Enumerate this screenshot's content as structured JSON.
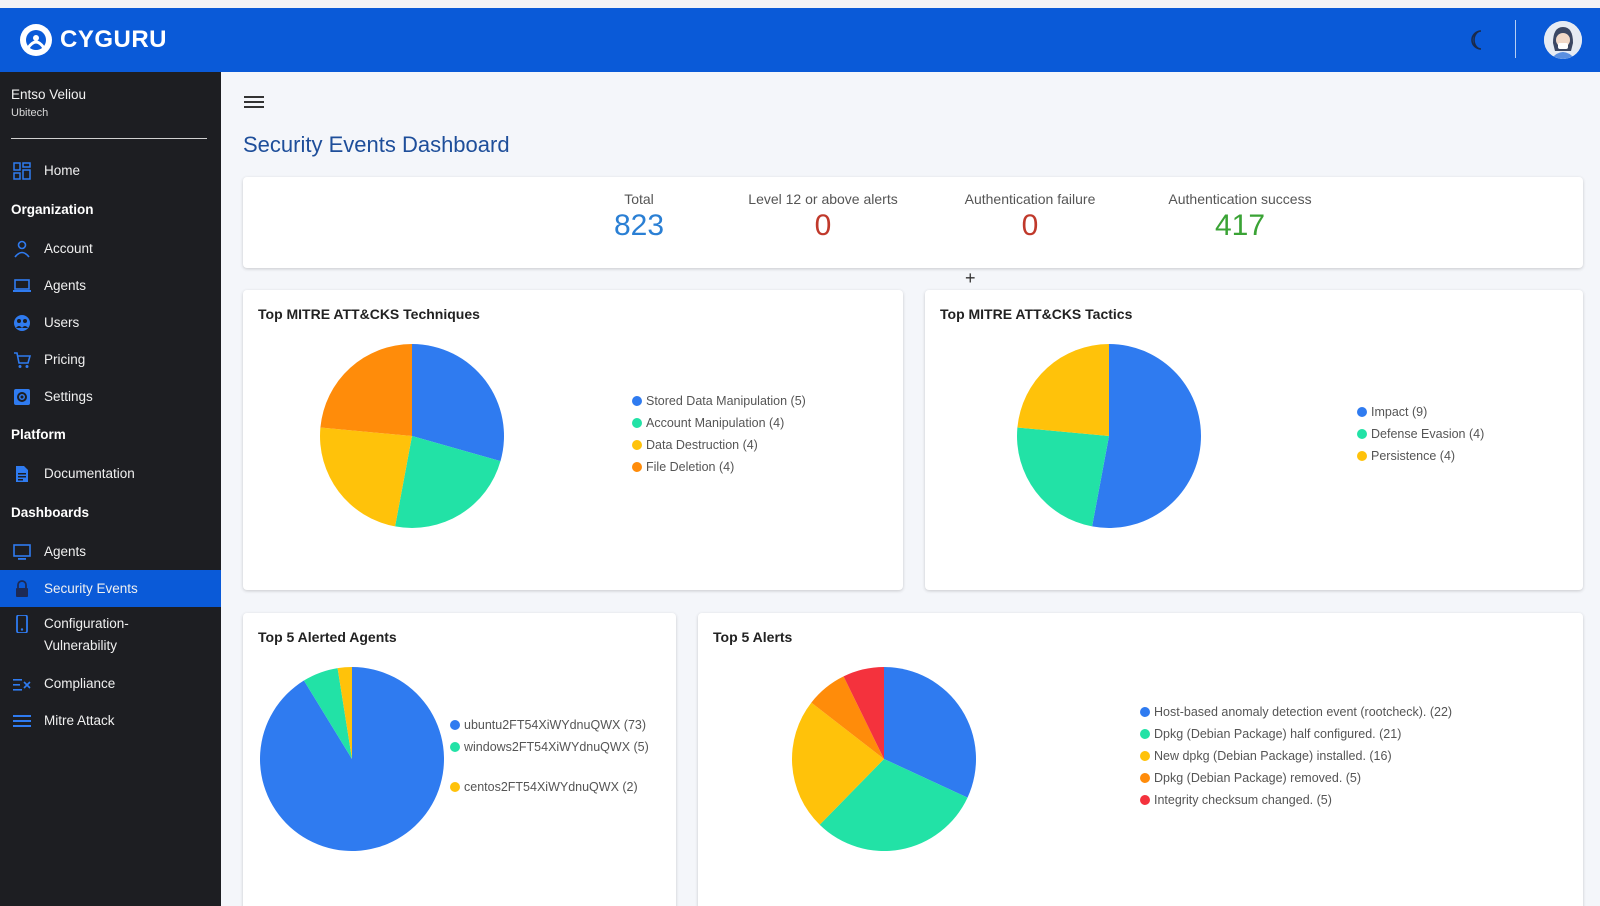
{
  "app": {
    "brand": "CYGURU"
  },
  "user": {
    "name": "Entso Veliou",
    "org": "Ubitech"
  },
  "sidebar": {
    "home": "Home",
    "sec_org": "Organization",
    "account": "Account",
    "agents": "Agents",
    "users": "Users",
    "pricing": "Pricing",
    "settings": "Settings",
    "sec_platform": "Platform",
    "documentation": "Documentation",
    "sec_dash": "Dashboards",
    "dash_agents": "Agents",
    "security_events": "Security Events",
    "config_vuln": "Configuration-Vulnerability",
    "compliance": "Compliance",
    "mitre": "Mitre Attack"
  },
  "page": {
    "title": "Security Events Dashboard"
  },
  "stats": [
    {
      "label": "Total",
      "value": "823",
      "color": "#2a7fd4"
    },
    {
      "label": "Level 12 or above alerts",
      "value": "0",
      "color": "#c0392b"
    },
    {
      "label": "Authentication failure",
      "value": "0",
      "color": "#c0392b"
    },
    {
      "label": "Authentication success",
      "value": "417",
      "color": "#3aa335"
    }
  ],
  "colors": {
    "blue": "#2f7bf0",
    "teal": "#22e2a6",
    "yellow": "#ffc20a",
    "orange": "#ff8c0a",
    "red": "#f4323d"
  },
  "chart_data": [
    {
      "type": "pie",
      "title": "Top MITRE ATT&CKS Techniques",
      "categories": [
        "Stored Data Manipulation (5)",
        "Account Manipulation (4)",
        "Data Destruction (4)",
        "File Deletion (4)"
      ],
      "values": [
        5,
        4,
        4,
        4
      ],
      "colors": [
        "#2f7bf0",
        "#22e2a6",
        "#ffc20a",
        "#ff8c0a"
      ]
    },
    {
      "type": "pie",
      "title": "Top MITRE ATT&CKS Tactics",
      "categories": [
        "Impact (9)",
        "Defense Evasion (4)",
        "Persistence (4)"
      ],
      "values": [
        9,
        4,
        4
      ],
      "colors": [
        "#2f7bf0",
        "#22e2a6",
        "#ffc20a"
      ]
    },
    {
      "type": "pie",
      "title": "Top 5 Alerted Agents",
      "categories": [
        "ubuntu2FT54XiWYdnuQWX (73)",
        "windows2FT54XiWYdnuQWX (5)",
        "centos2FT54XiWYdnuQWX (2)"
      ],
      "values": [
        73,
        5,
        2
      ],
      "colors": [
        "#2f7bf0",
        "#22e2a6",
        "#ffc20a"
      ]
    },
    {
      "type": "pie",
      "title": "Top 5 Alerts",
      "categories": [
        "Host-based anomaly detection event (rootcheck). (22)",
        "Dpkg (Debian Package) half configured. (21)",
        "New dpkg (Debian Package) installed. (16)",
        "Dpkg (Debian Package) removed. (5)",
        "Integrity checksum changed. (5)"
      ],
      "values": [
        22,
        21,
        16,
        5,
        5
      ],
      "colors": [
        "#2f7bf0",
        "#22e2a6",
        "#ffc20a",
        "#ff8c0a",
        "#f4323d"
      ]
    }
  ]
}
